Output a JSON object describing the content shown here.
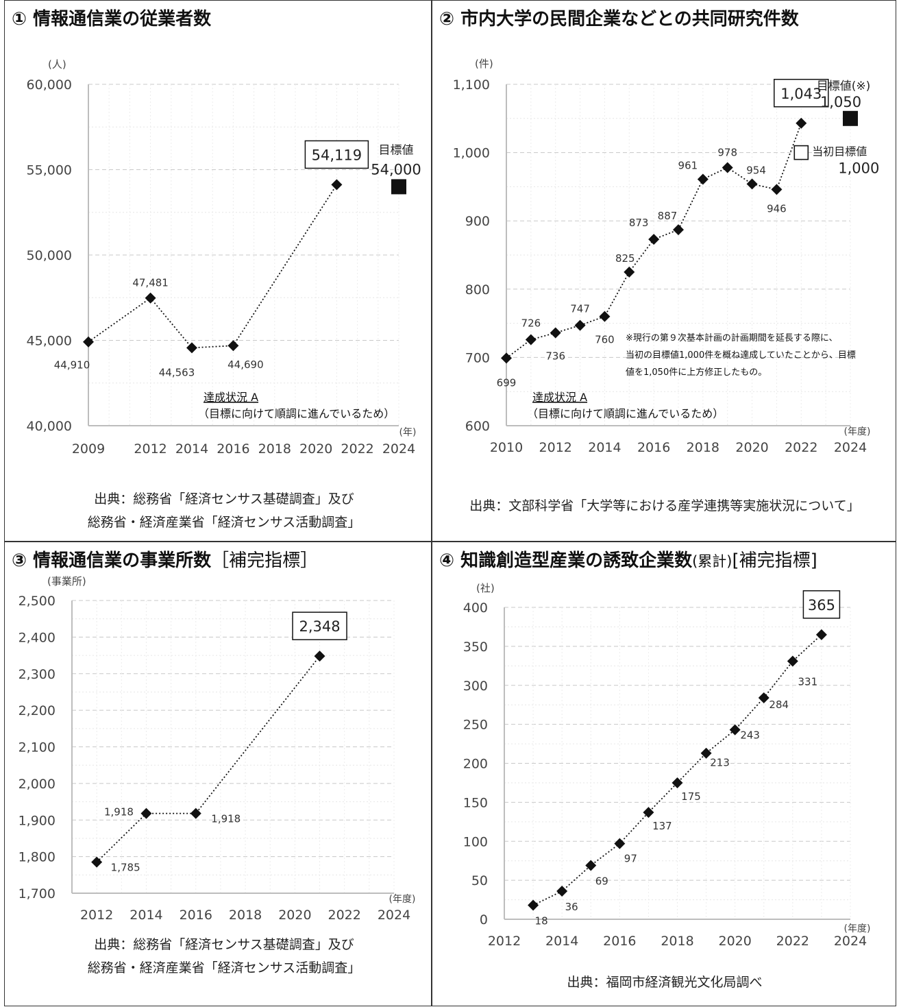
{
  "panels": [
    {
      "title": "① 情報通信業の従業者数",
      "source_line1": "出典：総務省「経済センサス基礎調査」及び",
      "source_line2": "総務省・経済産業省「経済センサス活動調査」"
    },
    {
      "title": "② 市内大学の民間企業などとの共同研究件数",
      "source_line1": "出典：文部科学省「大学等における産学連携等実施状況について」",
      "source_line2": ""
    },
    {
      "title_main": "③ 情報通信業の事業所数",
      "title_suffix": "［補完指標］",
      "source_line1": "出典：総務省「経済センサス基礎調査」及び",
      "source_line2": "総務省・経済産業省「経済センサス活動調査」"
    },
    {
      "title_main": "④ 知識創造型産業の誘致企業数",
      "title_small": "(累計)",
      "title_suffix": "[補完指標]",
      "source_line1": "出典：福岡市経済観光文化局調べ",
      "source_line2": ""
    }
  ],
  "chart_data": [
    {
      "type": "line",
      "yunit": "(人)",
      "xunit": "(年)",
      "ylim": [
        40000,
        60000
      ],
      "yticks": [
        40000,
        45000,
        50000,
        55000,
        60000
      ],
      "ytick_labels": [
        "40,000",
        "45,000",
        "50,000",
        "55,000",
        "60,000"
      ],
      "xticks": [
        2009,
        2012,
        2014,
        2016,
        2018,
        2020,
        2022,
        2024
      ],
      "x": [
        2009,
        2012,
        2014,
        2016,
        2021
      ],
      "y": [
        44910,
        47481,
        44563,
        44690,
        54119
      ],
      "labels": [
        "44,910",
        "47,481",
        "44,563",
        "44,690",
        "54,119"
      ],
      "target": {
        "x": 2024,
        "y": 54000,
        "label": "目標値",
        "value": "54,000"
      },
      "status_title": "達成状況 A",
      "status_note": "（目標に向けて順調に進んでいるため）"
    },
    {
      "type": "line",
      "yunit": "(件)",
      "xunit": "(年度)",
      "ylim": [
        600,
        1100
      ],
      "yticks": [
        600,
        700,
        800,
        900,
        1000,
        1100
      ],
      "ytick_labels": [
        "600",
        "700",
        "800",
        "900",
        "1,000",
        "1,100"
      ],
      "xticks": [
        2010,
        2012,
        2014,
        2016,
        2018,
        2020,
        2022,
        2024
      ],
      "x": [
        2010,
        2011,
        2012,
        2013,
        2014,
        2015,
        2016,
        2017,
        2018,
        2019,
        2020,
        2021,
        2022
      ],
      "y": [
        699,
        726,
        736,
        747,
        760,
        825,
        873,
        887,
        961,
        978,
        954,
        946,
        1043
      ],
      "labels": [
        "699",
        "726",
        "736",
        "747",
        "760",
        "825",
        "873",
        "887",
        "961",
        "978",
        "954",
        "946",
        "1,043"
      ],
      "target": {
        "x": 2024,
        "y": 1050,
        "label": "目標値(※)",
        "value": "1,050"
      },
      "initial_target": {
        "x": 2022,
        "y": 1000,
        "label": "当初目標値",
        "value": "1,000"
      },
      "note_lines": [
        "※現行の第９次基本計画の計画期間を延長する際に、",
        "当初の目標値1,000件を概ね達成していたことから、目標",
        "値を1,050件に上方修正したもの。"
      ],
      "status_title": "達成状況 A",
      "status_note": "（目標に向けて順調に進んでいるため）"
    },
    {
      "type": "line",
      "yunit": "(事業所)",
      "xunit": "(年度)",
      "ylim": [
        1700,
        2500
      ],
      "yticks": [
        1700,
        1800,
        1900,
        2000,
        2100,
        2200,
        2300,
        2400,
        2500
      ],
      "ytick_labels": [
        "1,700",
        "1,800",
        "1,900",
        "2,000",
        "2,100",
        "2,200",
        "2,300",
        "2,400",
        "2,500"
      ],
      "xticks": [
        2012,
        2014,
        2016,
        2018,
        2020,
        2022,
        2024
      ],
      "x": [
        2012,
        2014,
        2016,
        2021
      ],
      "y": [
        1785,
        1918,
        1918,
        2348
      ],
      "labels": [
        "1,785",
        "1,918",
        "1,918",
        "2,348"
      ]
    },
    {
      "type": "line",
      "yunit": "(社)",
      "xunit": "(年度)",
      "ylim": [
        0,
        400
      ],
      "yticks": [
        0,
        50,
        100,
        150,
        200,
        250,
        300,
        350,
        400
      ],
      "ytick_labels": [
        "0",
        "50",
        "100",
        "150",
        "200",
        "250",
        "300",
        "350",
        "400"
      ],
      "xticks": [
        2012,
        2014,
        2016,
        2018,
        2020,
        2022,
        2024
      ],
      "x": [
        2013,
        2014,
        2015,
        2016,
        2017,
        2018,
        2019,
        2020,
        2021,
        2022,
        2023
      ],
      "y": [
        18,
        36,
        69,
        97,
        137,
        175,
        213,
        243,
        284,
        331,
        365
      ],
      "labels": [
        "18",
        "36",
        "69",
        "97",
        "137",
        "175",
        "213",
        "243",
        "284",
        "331",
        "365"
      ]
    }
  ]
}
